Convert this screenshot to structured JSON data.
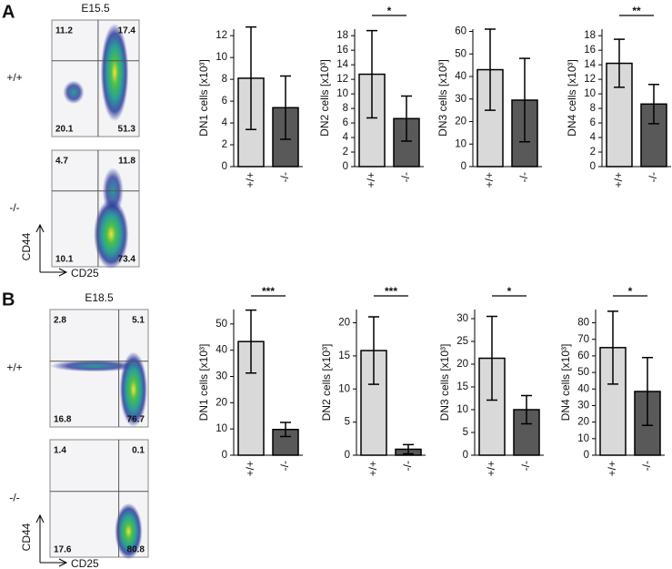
{
  "panels": [
    {
      "label": "A",
      "stage": "E15.5",
      "y_axis": "CD44",
      "x_axis": "CD25",
      "plots": [
        {
          "genotype": "+/+",
          "quadrants": [
            11.2,
            17.4,
            20.1,
            51.3
          ]
        },
        {
          "genotype": "-/-",
          "quadrants": [
            4.7,
            11.8,
            10.1,
            73.4
          ]
        }
      ]
    },
    {
      "label": "B",
      "stage": "E18.5",
      "y_axis": "CD44",
      "x_axis": "CD25",
      "plots": [
        {
          "genotype": "+/+",
          "quadrants": [
            2.8,
            5.1,
            16.8,
            76.7
          ]
        },
        {
          "genotype": "-/-",
          "quadrants": [
            1.4,
            0.1,
            17.6,
            80.8
          ]
        }
      ]
    }
  ],
  "chart_data": [
    {
      "type": "bar",
      "ylabel": "DN1 cells [x10³]",
      "categories": [
        "+/+",
        "-/-"
      ],
      "values": [
        8.1,
        5.4
      ],
      "errors": [
        4.7,
        2.9
      ],
      "colors": [
        "#d9d9d9",
        "#595959"
      ],
      "ylim": [
        0,
        12.6
      ],
      "yticks": [
        0,
        2,
        4,
        6,
        8,
        10,
        12
      ]
    },
    {
      "type": "bar",
      "ylabel": "DN2 cells [x10³]",
      "categories": [
        "+/+",
        "-/-"
      ],
      "values": [
        12.7,
        6.6
      ],
      "errors": [
        6.0,
        3.1
      ],
      "colors": [
        "#d9d9d9",
        "#595959"
      ],
      "ylim": [
        0,
        18.9
      ],
      "yticks": [
        0,
        2,
        4,
        6,
        8,
        10,
        12,
        14,
        16,
        18
      ],
      "significance": "*"
    },
    {
      "type": "bar",
      "ylabel": "DN3 cells [x10³]",
      "categories": [
        "+/+",
        "-/-"
      ],
      "values": [
        43,
        29.5
      ],
      "errors": [
        18,
        18.5
      ],
      "colors": [
        "#d9d9d9",
        "#595959"
      ],
      "ylim": [
        0,
        61
      ],
      "yticks": [
        0,
        10,
        20,
        30,
        40,
        50,
        60
      ]
    },
    {
      "type": "bar",
      "ylabel": "DN4 cells [x10³]",
      "categories": [
        "+/+",
        "-/-"
      ],
      "values": [
        14.2,
        8.6
      ],
      "errors": [
        3.3,
        2.7
      ],
      "colors": [
        "#d9d9d9",
        "#595959"
      ],
      "ylim": [
        0,
        18.9
      ],
      "yticks": [
        0,
        2,
        4,
        6,
        8,
        10,
        12,
        14,
        16,
        18
      ],
      "significance": "**"
    },
    {
      "type": "bar",
      "ylabel": "DN1 cells [x10³]",
      "categories": [
        "+/+",
        "-/-"
      ],
      "values": [
        43.3,
        9.8
      ],
      "errors": [
        12,
        2.7
      ],
      "colors": [
        "#d9d9d9",
        "#595959"
      ],
      "ylim": [
        0,
        55.5
      ],
      "yticks": [
        0,
        10,
        20,
        30,
        40,
        50
      ],
      "significance": "***"
    },
    {
      "type": "bar",
      "ylabel": "DN2 cells [x10³]",
      "categories": [
        "+/+",
        "-/-"
      ],
      "values": [
        15.8,
        0.9
      ],
      "errors": [
        5.1,
        0.7
      ],
      "colors": [
        "#d9d9d9",
        "#595959"
      ],
      "ylim": [
        0,
        22
      ],
      "yticks": [
        0,
        5,
        10,
        15,
        20
      ],
      "significance": "***"
    },
    {
      "type": "bar",
      "ylabel": "DN3 cells [x10³]",
      "categories": [
        "+/+",
        "-/-"
      ],
      "values": [
        21.3,
        10
      ],
      "errors": [
        9.2,
        3.1
      ],
      "colors": [
        "#d9d9d9",
        "#595959"
      ],
      "ylim": [
        0,
        32
      ],
      "yticks": [
        0,
        5,
        10,
        15,
        20,
        25,
        30
      ],
      "significance": "*"
    },
    {
      "type": "bar",
      "ylabel": "DN4 cells [x10³]",
      "categories": [
        "+/+",
        "-/-"
      ],
      "values": [
        65,
        38.5
      ],
      "errors": [
        22,
        20.5
      ],
      "colors": [
        "#d9d9d9",
        "#595959"
      ],
      "ylim": [
        0,
        88
      ],
      "yticks": [
        0,
        10,
        20,
        30,
        40,
        50,
        60,
        70,
        80
      ],
      "significance": "*"
    }
  ]
}
